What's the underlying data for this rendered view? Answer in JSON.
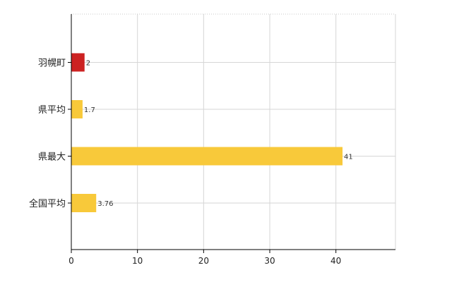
{
  "chart_data": {
    "type": "bar",
    "orientation": "horizontal",
    "categories": [
      "羽幌町",
      "県平均",
      "県最大",
      "全国平均"
    ],
    "values": [
      2,
      1.7,
      41,
      3.76
    ],
    "data_labels": [
      "2",
      "1.7",
      "41",
      "3.76"
    ],
    "colors": [
      "#cc2222",
      "#f8c93a",
      "#f8c93a",
      "#f8c93a"
    ],
    "xlim": [
      0,
      49
    ],
    "x_ticks": [
      0,
      10,
      20,
      30,
      40
    ],
    "x_tick_labels": [
      "0",
      "10",
      "20",
      "30",
      "40"
    ],
    "grid": true,
    "title": "",
    "xlabel": "",
    "ylabel": ""
  }
}
